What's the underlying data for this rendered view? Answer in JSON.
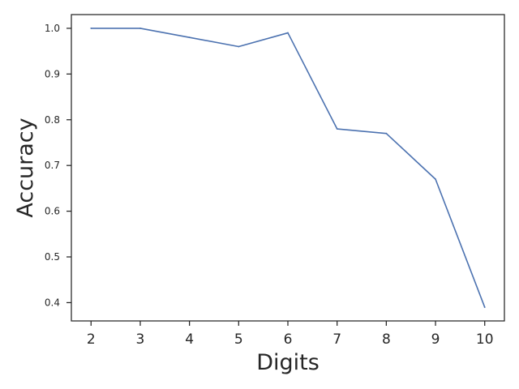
{
  "chart_data": {
    "type": "line",
    "title": "",
    "xlabel": "Digits",
    "ylabel": "Accuracy",
    "x": [
      2,
      3,
      4,
      5,
      6,
      7,
      8,
      9,
      10
    ],
    "series": [
      {
        "values": [
          1.0,
          1.0,
          0.98,
          0.96,
          0.99,
          0.78,
          0.77,
          0.67,
          0.39
        ]
      }
    ],
    "xticks": [
      "2",
      "3",
      "4",
      "5",
      "6",
      "7",
      "8",
      "9",
      "10"
    ],
    "yticks": [
      "0.4",
      "0.5",
      "0.6",
      "0.7",
      "0.8",
      "0.9",
      "1.0"
    ],
    "xlim": [
      1.6,
      10.4
    ],
    "ylim": [
      0.36,
      1.03
    ],
    "grid": false,
    "legend": "none",
    "colors": {
      "line": "#4c72b0",
      "axes": "#262626"
    }
  }
}
